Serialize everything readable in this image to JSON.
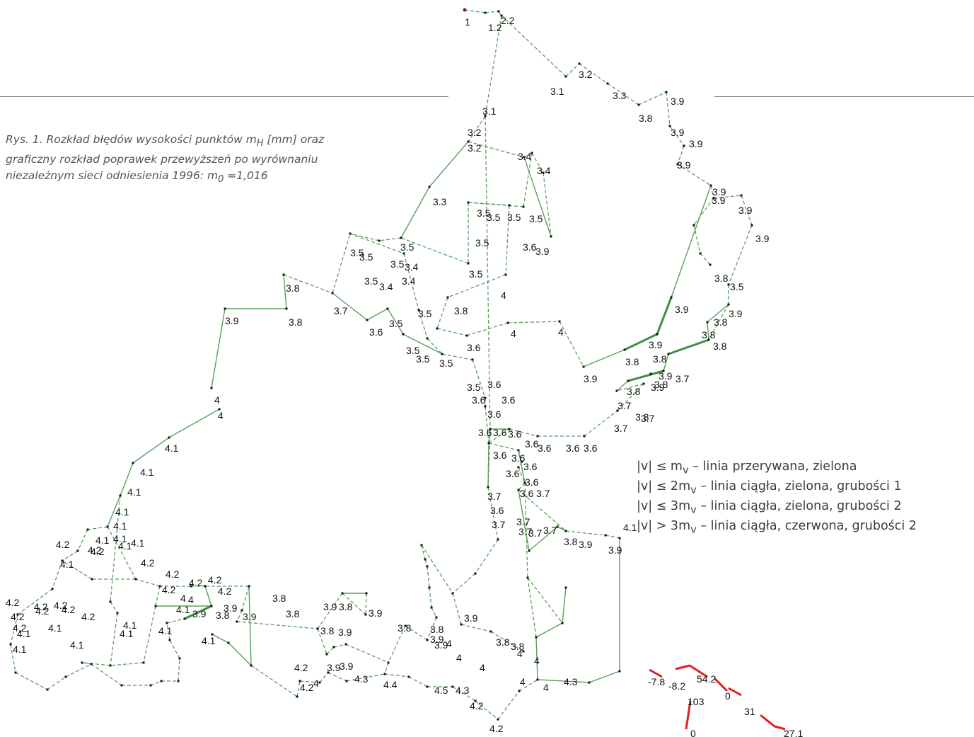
{
  "caption": {
    "line1_pre": "Rys. 1. Rozkład błędów wysokości punktów m",
    "line1_sub": "H",
    "line1_post": " [mm] oraz",
    "line2": "graficzny rozkład poprawek przewyższeń po wyrównaniu",
    "line3_pre": "niezależnym sieci odniesienia 1996: m",
    "line3_sub": "0",
    "line3_post": " =1,016"
  },
  "legend": [
    {
      "cond": "|v| ≤ m",
      "sub": "v",
      "desc": " – linia przerywana, zielona"
    },
    {
      "cond": "|v| ≤ 2m",
      "sub": "v",
      "desc": " – linia ciągła, zielona, grubości 1"
    },
    {
      "cond": "|v| ≤ 3m",
      "sub": "v",
      "desc": " – linia ciągła, zielona, grubości 2"
    },
    {
      "cond": "|v| > 3m",
      "sub": "v",
      "desc": " – linia ciągła, czerwona, grubości 2"
    }
  ],
  "colors": {
    "green": "#5aa05a",
    "red": "#e02020",
    "node": "#111111",
    "rule": "#7f7f7f"
  },
  "network_labels": [
    "1",
    "1.2",
    "2.2",
    "3.2",
    "3.1",
    "3.3",
    "3.9",
    "3.8",
    "3.9",
    "3.9",
    "3.9",
    "3.9",
    "3.9",
    "3.9",
    "3.9",
    "3.1",
    "3.2",
    "3.2",
    "3.4",
    "3.4",
    "3.3",
    "3.5",
    "3.5",
    "3.5",
    "3.5",
    "3.5",
    "3.5",
    "3.6",
    "3.9",
    "3.5",
    "3.5",
    "3.5",
    "3.4",
    "3.4",
    "3.5",
    "3.5",
    "3.4",
    "3.8",
    "3.8",
    "3.9",
    "3.8",
    "3.7",
    "3.6",
    "3.5",
    "3.5",
    "3.8",
    "4",
    "3.5",
    "3.6",
    "3.5",
    "3.5",
    "3.5",
    "3.9",
    "4",
    "4",
    "4",
    "4",
    "3.8",
    "3.8",
    "3.9",
    "3.9",
    "3.8",
    "3.8",
    "3.8",
    "3.9",
    "3.8",
    "3.7",
    "3.9",
    "3.9",
    "3.8",
    "3.8",
    "3.7",
    "3.7",
    "3.7",
    "3.5",
    "3.6",
    "3.6",
    "3.6",
    "3.6",
    "3.6",
    "3.6",
    "3.6",
    "3.6",
    "3.6",
    "3.6",
    "3.6",
    "3.6",
    "3.6",
    "3.6",
    "3.6",
    "3.6",
    "3.6",
    "3.7",
    "3.7",
    "3.6",
    "3.7",
    "3.7",
    "3.7",
    "3.7",
    "3.7",
    "3.8",
    "3.9",
    "3.9",
    "4.1",
    "4.1",
    "4.1",
    "4.1",
    "4.1",
    "4.1",
    "4.1",
    "4.1",
    "4.1",
    "4.1",
    "4.2",
    "4.2",
    "4.2",
    "4.2",
    "4.1",
    "4.2",
    "4.2",
    "4.2",
    "4.2",
    "4.2",
    "4.2",
    "4.2",
    "4.2",
    "4.2",
    "4.2",
    "4.2",
    "4.2",
    "4.2",
    "4.1",
    "4.1",
    "4.1",
    "4.1",
    "4.1",
    "4.1",
    "4.1",
    "4.1",
    "4",
    "4",
    "4.1",
    "3.9",
    "3.9",
    "3.9",
    "3.8",
    "3.8",
    "3.9",
    "3.8",
    "3.8",
    "3.8",
    "3.9",
    "3.9",
    "3.8",
    "3.8",
    "3.9",
    "3.9",
    "3.9",
    "3.8",
    "3.8",
    "4",
    "4",
    "4",
    "4",
    "4",
    "4",
    "4",
    "4.3",
    "4.3",
    "4.4",
    "4.5",
    "4.3",
    "4.2",
    "4.2",
    "4.2",
    "4.2",
    "4",
    "3.9",
    "3.9"
  ],
  "inset_labels": [
    "-7.8",
    "-8.2",
    "54.2",
    "103",
    "0",
    "31",
    "0",
    "27.1"
  ]
}
